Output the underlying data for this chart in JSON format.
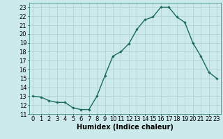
{
  "x": [
    0,
    1,
    2,
    3,
    4,
    5,
    6,
    7,
    8,
    9,
    10,
    11,
    12,
    13,
    14,
    15,
    16,
    17,
    18,
    19,
    20,
    21,
    22,
    23
  ],
  "y": [
    13.0,
    12.9,
    12.5,
    12.3,
    12.3,
    11.7,
    11.5,
    11.5,
    13.0,
    15.3,
    17.5,
    18.0,
    18.9,
    20.5,
    21.6,
    21.9,
    23.0,
    23.0,
    21.9,
    21.3,
    19.0,
    17.5,
    15.7,
    15.0
  ],
  "line_color": "#1a6b5a",
  "marker": "D",
  "marker_size": 1.8,
  "bg_color": "#cce9ec",
  "grid_color": "#aacfd4",
  "xlabel": "Humidex (Indice chaleur)",
  "ylim": [
    11,
    23.5
  ],
  "xlim": [
    -0.5,
    23.5
  ],
  "yticks": [
    11,
    12,
    13,
    14,
    15,
    16,
    17,
    18,
    19,
    20,
    21,
    22,
    23
  ],
  "xticks": [
    0,
    1,
    2,
    3,
    4,
    5,
    6,
    7,
    8,
    9,
    10,
    11,
    12,
    13,
    14,
    15,
    16,
    17,
    18,
    19,
    20,
    21,
    22,
    23
  ],
  "xlabel_fontsize": 7.0,
  "tick_fontsize": 6.0,
  "linewidth": 1.0
}
